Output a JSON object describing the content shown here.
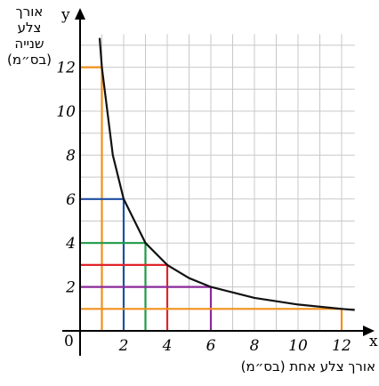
{
  "chart_data": {
    "type": "line",
    "x_axis_symbol": "x",
    "y_axis_symbol": "y",
    "origin_label": "0",
    "xlabel": "אורך צלע אחת (בס״מ)",
    "ylabel_lines": [
      "אורך",
      "צלע",
      "שנייה",
      "(בס״מ)"
    ],
    "xlim": [
      0,
      12.6
    ],
    "ylim": [
      0,
      13.5
    ],
    "x_ticks": [
      2,
      4,
      6,
      8,
      10,
      12
    ],
    "y_ticks": [
      2,
      4,
      6,
      8,
      10,
      12
    ],
    "grid": true,
    "grid_step": 1,
    "curve": {
      "name": "",
      "function": "x*y=12",
      "x": [
        0.9,
        1,
        1.5,
        2,
        3,
        4,
        5,
        6,
        8,
        10,
        12,
        12.6
      ],
      "y": [
        13.33,
        12,
        8,
        6,
        4,
        3,
        2.4,
        2,
        1.5,
        1.2,
        1,
        0.95
      ]
    },
    "rectangles": [
      {
        "width": 1,
        "height": 12,
        "color": "#f0901c"
      },
      {
        "width": 2,
        "height": 6,
        "color": "#1f4fa0"
      },
      {
        "width": 3,
        "height": 4,
        "color": "#1f9a48"
      },
      {
        "width": 4,
        "height": 3,
        "color": "#e0242b"
      },
      {
        "width": 6,
        "height": 2,
        "color": "#8a2a9a"
      },
      {
        "width": 12,
        "height": 1,
        "color": "#f0901c"
      }
    ]
  }
}
